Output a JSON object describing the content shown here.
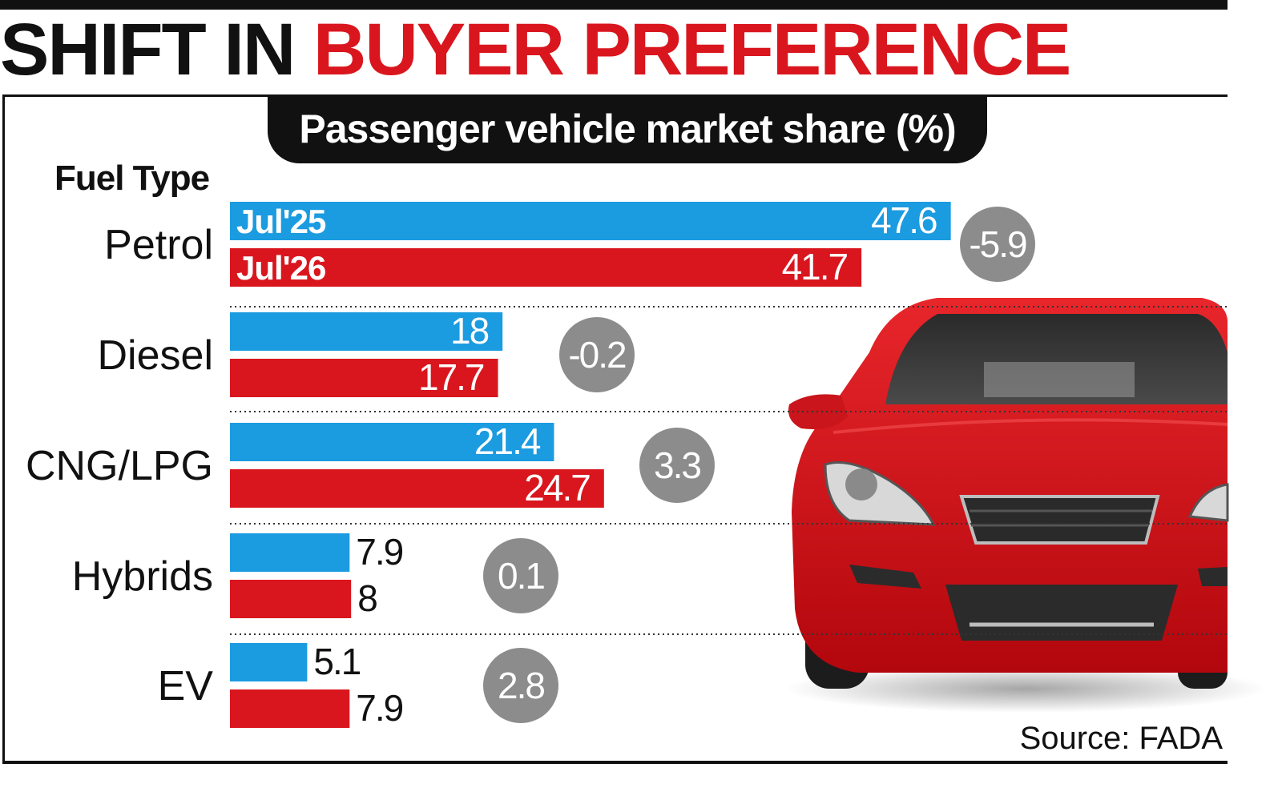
{
  "headline": {
    "part1": "SHIFT IN",
    "part2": "BUYER PREFERENCE"
  },
  "source": "Source: FADA",
  "colors": {
    "jul25": "#1b9be0",
    "jul26": "#d9161e",
    "change_badge": "#8c8c8c",
    "red_car": "#d11a1f"
  },
  "illustration": {
    "icon": "red-car-icon"
  },
  "chart_data": {
    "type": "bar",
    "orientation": "horizontal",
    "title": "Passenger vehicle market share (%)",
    "category_axis_label": "Fuel Type",
    "categories": [
      "Petrol",
      "Diesel",
      "CNG/LPG",
      "Hybrids",
      "EV"
    ],
    "series": [
      {
        "name": "Jul'25",
        "values": [
          47.6,
          18,
          21.4,
          7.9,
          5.1
        ]
      },
      {
        "name": "Jul'26",
        "values": [
          41.7,
          17.7,
          24.7,
          8,
          7.9
        ]
      }
    ],
    "value_labels": [
      [
        "47.6",
        "18",
        "21.4",
        "7.9",
        "5.1"
      ],
      [
        "41.7",
        "17.7",
        "24.7",
        "8",
        "7.9"
      ]
    ],
    "change_labels": [
      "-5.9",
      "-0.2",
      "3.3",
      "0.1",
      "2.8"
    ],
    "xlim": [
      0,
      50
    ],
    "grid": false,
    "legend": "inside-first-bars"
  }
}
